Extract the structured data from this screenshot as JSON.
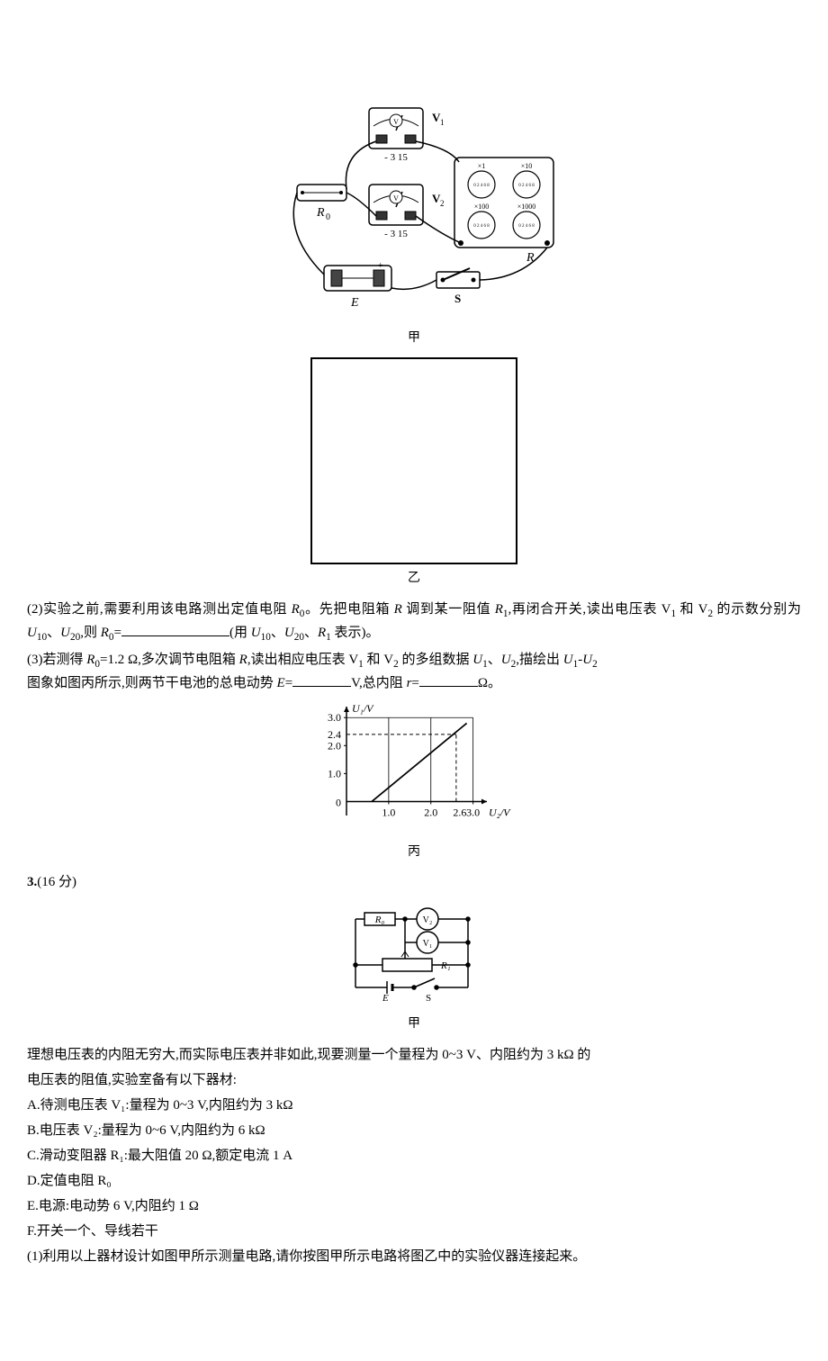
{
  "apparatus": {
    "caption": "甲",
    "v1_label": "V₁",
    "v2_label": "V₂",
    "r0_label": "R₀",
    "r_label": "R",
    "e_label": "E",
    "s_label": "S",
    "scale": "- 3 15",
    "dials": [
      "×1",
      "×10",
      "×100",
      "×1000"
    ],
    "colors": {
      "bg": "#ffffff",
      "line": "#000000"
    }
  },
  "blankbox": {
    "caption": "乙"
  },
  "q2_part2": {
    "prefix": "(2)实验之前,需要利用该电路测出定值电阻 ",
    "r0": "R",
    "r0_sub": "0",
    "after_r0": "。先把电阻箱 ",
    "r": "R",
    "txt2": " 调到某一阻值 ",
    "r1": "R",
    "r1_sub": "1",
    "txt3": ",再闭合开关,读出电压表 V",
    "v1_sub": "1",
    "txt4": " 和 V",
    "v2_sub": "2",
    "txt5": " 的示数分别为 ",
    "u10": "U",
    "u10_sub": "10",
    "sep": "、",
    "u20": "U",
    "u20_sub": "20",
    "txt6": ",则 ",
    "eq_l": "R",
    "eq_sub": "0",
    "eq": "=",
    "hint": "(用 ",
    "hint_end": " 表示)。"
  },
  "q2_part3": {
    "line1a": "(3)若测得 ",
    "r0": "R",
    "r0_sub": "0",
    "r0_val": "=1.2 Ω,多次调节电阻箱 ",
    "r": "R",
    "txt2": ",读出相应电压表 V",
    "v1_sub": "1",
    "txt3": " 和 V",
    "v2_sub": "2",
    "txt4": " 的多组数据 ",
    "u1": "U",
    "u1_sub": "1",
    "sep": "、",
    "u2": "U",
    "u2_sub": "2",
    "txt5": ",描绘出 ",
    "graph": "U",
    "g1_sub": "1",
    "dash": "-",
    "g2": "U",
    "g2_sub": "2",
    "line2a": "图象如图丙所示,则两节干电池的总电动势 ",
    "e": "E",
    "e_eq": "=",
    "e_unit": "V,总内阻 ",
    "r_int": "r",
    "r_eq": "=",
    "r_unit": "Ω。"
  },
  "chart": {
    "type": "line",
    "caption": "丙",
    "xlabel": "U₂/V",
    "ylabel": "U₁/V",
    "x_ticks": [
      0,
      1.0,
      2.0,
      3.0
    ],
    "x_special": 2.6,
    "x_special_label": "2.6",
    "y_ticks": [
      0,
      1.0,
      2.0,
      3.0
    ],
    "y_special": 2.4,
    "y_special_label": "2.4",
    "xlim": [
      0,
      3.2
    ],
    "ylim": [
      -0.5,
      3.2
    ],
    "line_p1": [
      0.6,
      0
    ],
    "line_p2": [
      2.85,
      2.8
    ],
    "dashed_h_y": 2.4,
    "dashed_h_x_end": 2.6,
    "dashed_v_x": 2.6,
    "dashed_v_y_end": 2.4,
    "colors": {
      "bg": "#ffffff",
      "axis": "#000000",
      "line": "#000000",
      "grid": "#000000",
      "dash": "#000000"
    },
    "axis_width": 1.5,
    "line_width": 1.2,
    "font_size": 12
  },
  "q3": {
    "number": "3.",
    "points": "(16 分)"
  },
  "circuit3": {
    "caption": "甲",
    "r0": "R₀",
    "v2": "V₂",
    "v1": "V₁",
    "r1": "R₁",
    "e": "E",
    "s": "S",
    "colors": {
      "line": "#000000"
    }
  },
  "q3_body": {
    "intro1": "理想电压表的内阻无穷大,而实际电压表并非如此,现要测量一个量程为 0~3 V、内阻约为 3 kΩ 的",
    "intro2": "电压表的阻值,实验室备有以下器材:",
    "a": "A.待测电压表 V₁:量程为 0~3 V,内阻约为 3 kΩ",
    "b": "B.电压表 V₂:量程为 0~6 V,内阻约为 6 kΩ",
    "c": "C.滑动变阻器 R₁:最大阻值 20 Ω,额定电流 1 A",
    "d": "D.定值电阻 R₀",
    "e": "E.电源:电动势 6 V,内阻约 1 Ω",
    "f": "F.开关一个、导线若干",
    "q1": "(1)利用以上器材设计如图甲所示测量电路,请你按图甲所示电路将图乙中的实验仪器连接起来。"
  }
}
